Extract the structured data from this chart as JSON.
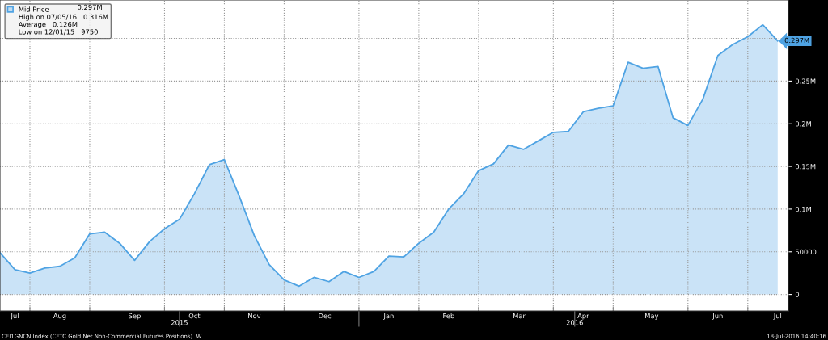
{
  "chart_data": {
    "type": "area",
    "x": [
      "2015-07-14",
      "2015-07-21",
      "2015-07-28",
      "2015-08-04",
      "2015-08-11",
      "2015-08-18",
      "2015-08-25",
      "2015-09-01",
      "2015-09-08",
      "2015-09-15",
      "2015-09-22",
      "2015-09-29",
      "2015-10-06",
      "2015-10-13",
      "2015-10-20",
      "2015-10-27",
      "2015-11-03",
      "2015-11-10",
      "2015-11-17",
      "2015-11-24",
      "2015-12-01",
      "2015-12-08",
      "2015-12-15",
      "2015-12-22",
      "2015-12-29",
      "2016-01-05",
      "2016-01-12",
      "2016-01-19",
      "2016-01-26",
      "2016-02-02",
      "2016-02-09",
      "2016-02-16",
      "2016-02-23",
      "2016-03-01",
      "2016-03-08",
      "2016-03-15",
      "2016-03-22",
      "2016-03-29",
      "2016-04-05",
      "2016-04-12",
      "2016-04-19",
      "2016-04-26",
      "2016-05-03",
      "2016-05-10",
      "2016-05-17",
      "2016-05-24",
      "2016-05-31",
      "2016-06-07",
      "2016-06-14",
      "2016-06-21",
      "2016-06-28",
      "2016-07-05",
      "2016-07-12"
    ],
    "series": [
      {
        "name": "Mid Price",
        "color": "#4fa3e3",
        "values": [
          49000,
          29000,
          25000,
          31000,
          33000,
          43000,
          71000,
          73000,
          60000,
          40000,
          62000,
          77000,
          88000,
          118000,
          152000,
          158000,
          115000,
          69000,
          35000,
          17000,
          9750,
          20000,
          15000,
          27000,
          20000,
          27000,
          45000,
          44000,
          60000,
          73000,
          100000,
          118000,
          145000,
          153000,
          175000,
          170000,
          180000,
          190000,
          191000,
          214000,
          218000,
          221000,
          272000,
          265000,
          267000,
          207000,
          198000,
          229000,
          280000,
          293000,
          302000,
          316000,
          297000
        ],
        "value_labels": [
          null,
          null,
          null,
          null,
          null,
          null,
          null,
          null,
          null,
          null,
          null,
          null,
          null,
          null,
          null,
          null,
          null,
          null,
          null,
          null,
          null,
          null,
          null,
          null,
          null,
          null,
          null,
          null,
          null,
          null,
          null,
          null,
          null,
          null,
          null,
          null,
          null,
          null,
          null,
          null,
          null,
          null,
          null,
          null,
          null,
          null,
          null,
          null,
          null,
          null,
          null,
          null,
          "0.297M"
        ]
      }
    ],
    "xlim": [
      "2015-07-14",
      "2016-07-17"
    ],
    "xticks": [
      {
        "value": "2015-07-21",
        "label": "Jul"
      },
      {
        "value": "2015-07-28",
        "label": null
      },
      {
        "value": "2015-08-11",
        "label": "Aug"
      },
      {
        "value": "2015-08-25",
        "label": null
      },
      {
        "value": "2015-09-15",
        "label": "Sep"
      },
      {
        "value": "2015-09-29",
        "label": null
      },
      {
        "value": "2015-10-13",
        "label": "Oct"
      },
      {
        "value": "2015-10-27",
        "label": null
      },
      {
        "value": "2015-11-10",
        "label": "Nov"
      },
      {
        "value": "2015-11-24",
        "label": null
      },
      {
        "value": "2015-12-13",
        "label": "Dec"
      },
      {
        "value": "2015-12-29",
        "label": null
      },
      {
        "value": "2016-01-12",
        "label": "Jan"
      },
      {
        "value": "2016-01-26",
        "label": null
      },
      {
        "value": "2016-02-09",
        "label": "Feb"
      },
      {
        "value": "2016-02-23",
        "label": null
      },
      {
        "value": "2016-03-13",
        "label": "Mar"
      },
      {
        "value": "2016-03-29",
        "label": null
      },
      {
        "value": "2016-04-12",
        "label": "Apr"
      },
      {
        "value": "2016-04-26",
        "label": null
      },
      {
        "value": "2016-05-14",
        "label": "May"
      },
      {
        "value": "2016-05-31",
        "label": null
      },
      {
        "value": "2016-06-14",
        "label": "Jun"
      },
      {
        "value": "2016-06-28",
        "label": null
      },
      {
        "value": "2016-07-12",
        "label": "Jul"
      }
    ],
    "x2lim": [
      "2015-07-14",
      "2016-07-17"
    ],
    "x2ticks": [
      {
        "value": "2015-10-06",
        "label": "2015"
      },
      {
        "value": "2015-12-29",
        "label": null
      },
      {
        "value": "2016-04-08",
        "label": "2016"
      }
    ],
    "ylim": [
      -19300,
      345000
    ],
    "yticks": [
      0,
      50000,
      {
        "value": 100000,
        "label": "0.1M"
      },
      {
        "value": 150000,
        "label": "0.15M"
      },
      {
        "value": 200000,
        "label": "0.2M"
      },
      {
        "value": 250000,
        "label": "0.25M"
      },
      {
        "value": 300000,
        "label": null
      }
    ],
    "grid": true,
    "legend": "top left",
    "annotations": [
      "0.297M",
      "High on 07/05/16   0.316M",
      "Average   0.126M",
      "Low on 12/01/15   9750",
      "CEI1GNCN Index (CFTC Gold Net Non-Commercial Futures Positions)  W",
      "18-Jul-2016 14:40:16"
    ]
  }
}
